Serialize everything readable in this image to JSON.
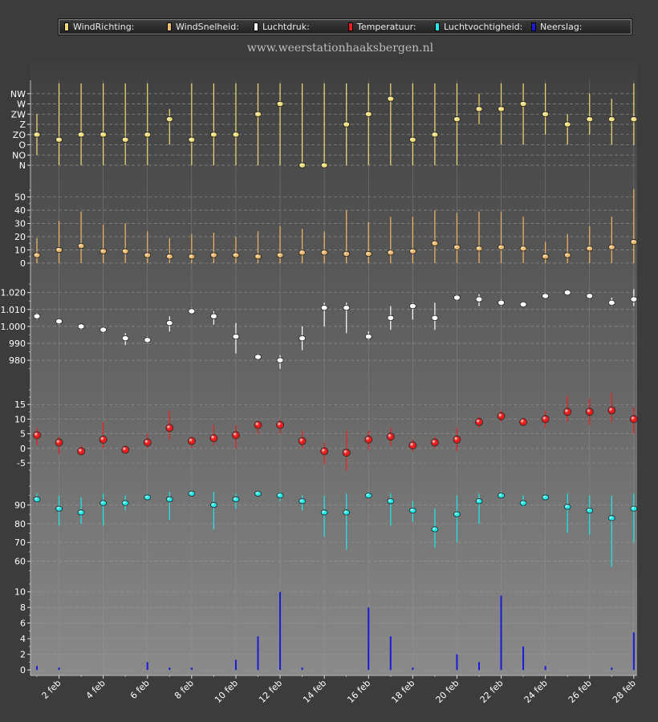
{
  "site_title": "www.weerstationhaaksbergen.nl",
  "colors": {
    "background": "#3c3c3c",
    "grid": "#9a9a9a",
    "wind_direction": "#f3dc78",
    "wind_speed": "#f0b86a",
    "pressure": "#ffffff",
    "temperature": "#ee1e1e",
    "humidity": "#1ee8e8",
    "precipitation": "#1a1ad8"
  },
  "legend": [
    {
      "label": "WindRichting:",
      "color": "#f3dc78"
    },
    {
      "label": "WindSnelheid:",
      "color": "#f0b86a"
    },
    {
      "label": "Luchtdruk:",
      "color": "#ffffff"
    },
    {
      "label": "Temperatuur:",
      "color": "#ee1e1e"
    },
    {
      "label": "Luchtvochtigheid:",
      "color": "#1ee8e8"
    },
    {
      "label": "Neerslag:",
      "color": "#1a1ad8"
    }
  ],
  "chart_data": [
    {
      "type": "scatter",
      "name": "WindRichting",
      "x": [
        "1 feb",
        "2 feb",
        "3 feb",
        "4 feb",
        "5 feb",
        "6 feb",
        "7 feb",
        "8 feb",
        "9 feb",
        "10 feb",
        "11 feb",
        "12 feb",
        "13 feb",
        "14 feb",
        "15 feb",
        "16 feb",
        "17 feb",
        "18 feb",
        "19 feb",
        "20 feb",
        "21 feb",
        "22 feb",
        "23 feb",
        "24 feb",
        "25 feb",
        "26 feb",
        "27 feb",
        "28 feb"
      ],
      "ytick_labels": [
        "N",
        "NO",
        "O",
        "ZO",
        "Z",
        "ZW",
        "W",
        "NW"
      ],
      "values": [
        3,
        2.5,
        3,
        3,
        2.5,
        3,
        4.5,
        2.5,
        3,
        3,
        5,
        6,
        0,
        0,
        4,
        5,
        6.5,
        2.5,
        3,
        4.5,
        5.5,
        5.5,
        6,
        5,
        4,
        4.5,
        4.5,
        4.5
      ],
      "low": [
        1,
        0,
        0,
        0,
        0,
        0,
        2,
        0,
        0,
        0,
        0,
        0,
        0,
        0,
        0,
        0,
        0,
        0,
        0,
        0,
        4,
        2,
        2,
        3,
        2,
        3,
        2,
        2
      ],
      "high": [
        5,
        8,
        8,
        8,
        8,
        8,
        5.5,
        8,
        8,
        8,
        8,
        8,
        8,
        8,
        8,
        8,
        8,
        8,
        8,
        8,
        7,
        8,
        8,
        8,
        5,
        7,
        6.5,
        8
      ],
      "ylim": [
        0,
        8
      ]
    },
    {
      "type": "scatter",
      "name": "WindSnelheid",
      "x": [
        "1 feb",
        "2 feb",
        "3 feb",
        "4 feb",
        "5 feb",
        "6 feb",
        "7 feb",
        "8 feb",
        "9 feb",
        "10 feb",
        "11 feb",
        "12 feb",
        "13 feb",
        "14 feb",
        "15 feb",
        "16 feb",
        "17 feb",
        "18 feb",
        "19 feb",
        "20 feb",
        "21 feb",
        "22 feb",
        "23 feb",
        "24 feb",
        "25 feb",
        "26 feb",
        "27 feb",
        "28 feb"
      ],
      "yticks": [
        0,
        10,
        20,
        30,
        40,
        50
      ],
      "values": [
        6,
        10,
        13,
        9,
        9,
        6,
        5,
        5,
        6,
        6,
        5,
        6,
        8,
        8,
        7,
        7,
        8,
        9,
        15,
        12,
        11,
        12,
        11,
        5,
        6,
        11,
        12,
        16
      ],
      "low": [
        0,
        0,
        0,
        0,
        0,
        0,
        0,
        0,
        0,
        0,
        0,
        0,
        0,
        0,
        0,
        0,
        0,
        0,
        0,
        0,
        0,
        0,
        0,
        0,
        0,
        0,
        0,
        0
      ],
      "high": [
        19,
        32,
        39,
        29,
        30,
        24,
        19,
        22,
        23,
        20,
        24,
        28,
        26,
        24,
        40,
        31,
        35,
        35,
        40,
        38,
        39,
        39,
        35,
        16,
        22,
        28,
        35,
        56
      ],
      "ylim": [
        0,
        57
      ]
    },
    {
      "type": "scatter",
      "name": "Luchtdruk",
      "x": [
        "1 feb",
        "2 feb",
        "3 feb",
        "4 feb",
        "5 feb",
        "6 feb",
        "7 feb",
        "8 feb",
        "9 feb",
        "10 feb",
        "11 feb",
        "12 feb",
        "13 feb",
        "14 feb",
        "15 feb",
        "16 feb",
        "17 feb",
        "18 feb",
        "19 feb",
        "20 feb",
        "21 feb",
        "22 feb",
        "23 feb",
        "24 feb",
        "25 feb",
        "26 feb",
        "27 feb",
        "28 feb"
      ],
      "yticks": [
        980,
        990,
        1000,
        1010,
        1020
      ],
      "ytick_labels": [
        "980",
        "990",
        "1.000",
        "1.010",
        "1.020"
      ],
      "values": [
        1006,
        1003,
        1000,
        998,
        993,
        992,
        1002,
        1009,
        1006,
        994,
        982,
        980,
        993,
        1011,
        1011,
        994,
        1005,
        1012,
        1005,
        1017,
        1016,
        1014,
        1013,
        1018,
        1020,
        1018,
        1014,
        1016
      ],
      "low": [
        1004,
        1001,
        998,
        996,
        989,
        990,
        997,
        1008,
        1001,
        984,
        981,
        975,
        986,
        1000,
        996,
        992,
        998,
        1004,
        998,
        1015,
        1012,
        1012,
        1012,
        1017,
        1019,
        1017,
        1012,
        1012
      ],
      "high": [
        1008,
        1004,
        1001,
        999,
        996,
        994,
        1006,
        1011,
        1009,
        1002,
        984,
        983,
        1000,
        1014,
        1014,
        997,
        1012,
        1014,
        1014,
        1019,
        1019,
        1016,
        1014,
        1020,
        1021,
        1019,
        1017,
        1022
      ],
      "ylim": [
        972,
        1026
      ]
    },
    {
      "type": "scatter",
      "name": "Temperatuur",
      "x": [
        "1 feb",
        "2 feb",
        "3 feb",
        "4 feb",
        "5 feb",
        "6 feb",
        "7 feb",
        "8 feb",
        "9 feb",
        "10 feb",
        "11 feb",
        "12 feb",
        "13 feb",
        "14 feb",
        "15 feb",
        "16 feb",
        "17 feb",
        "18 feb",
        "19 feb",
        "20 feb",
        "21 feb",
        "22 feb",
        "23 feb",
        "24 feb",
        "25 feb",
        "26 feb",
        "27 feb",
        "28 feb"
      ],
      "yticks": [
        -5,
        0,
        5,
        10,
        15
      ],
      "values": [
        4.5,
        2,
        -1,
        3,
        -0.5,
        2,
        7,
        2.5,
        3.5,
        4.5,
        8,
        8,
        2.5,
        -1,
        -1.5,
        3,
        4,
        1,
        2,
        3,
        9,
        11,
        9,
        10,
        12.5,
        12.5,
        13,
        10
      ],
      "low": [
        1,
        -2,
        -2.5,
        0,
        -1.5,
        0,
        3,
        0,
        1,
        0,
        5,
        5,
        0,
        -5.5,
        -7.5,
        -0.5,
        1,
        -1,
        0,
        -1,
        7,
        9,
        8,
        7,
        9,
        8,
        9,
        5
      ],
      "high": [
        7,
        4,
        1,
        9,
        1,
        5,
        13,
        4,
        8,
        8,
        9,
        10,
        6,
        2,
        6,
        6,
        7,
        3,
        4,
        7,
        11,
        13,
        10,
        13,
        18,
        17,
        19,
        14
      ],
      "ylim": [
        -8,
        20
      ]
    },
    {
      "type": "scatter",
      "name": "Luchtvochtigheid",
      "x": [
        "1 feb",
        "2 feb",
        "3 feb",
        "4 feb",
        "5 feb",
        "6 feb",
        "7 feb",
        "8 feb",
        "9 feb",
        "10 feb",
        "11 feb",
        "12 feb",
        "13 feb",
        "14 feb",
        "15 feb",
        "16 feb",
        "17 feb",
        "18 feb",
        "19 feb",
        "20 feb",
        "21 feb",
        "22 feb",
        "23 feb",
        "24 feb",
        "25 feb",
        "26 feb",
        "27 feb",
        "28 feb"
      ],
      "yticks": [
        60,
        70,
        80,
        90
      ],
      "values": [
        93,
        88,
        86,
        91,
        91,
        94,
        93,
        96,
        90,
        93,
        96,
        95,
        92,
        86,
        86,
        95,
        92,
        87,
        77,
        85,
        92,
        95,
        91,
        94,
        89,
        87,
        83,
        88
      ],
      "low": [
        91,
        79,
        80,
        79,
        87,
        93,
        82,
        95,
        77,
        88,
        95,
        92,
        87,
        73,
        66,
        94,
        79,
        81,
        67,
        70,
        80,
        94,
        89,
        93,
        75,
        74,
        57,
        70
      ],
      "high": [
        96,
        95,
        94,
        96,
        95,
        96,
        97,
        97,
        97,
        96,
        97,
        97,
        95,
        95,
        96,
        97,
        96,
        92,
        88,
        95,
        96,
        97,
        95,
        96,
        96,
        95,
        95,
        96
      ],
      "ylim": [
        53,
        100
      ]
    },
    {
      "type": "bar",
      "name": "Neerslag",
      "x": [
        "1 feb",
        "2 feb",
        "3 feb",
        "4 feb",
        "5 feb",
        "6 feb",
        "7 feb",
        "8 feb",
        "9 feb",
        "10 feb",
        "11 feb",
        "12 feb",
        "13 feb",
        "14 feb",
        "15 feb",
        "16 feb",
        "17 feb",
        "18 feb",
        "19 feb",
        "20 feb",
        "21 feb",
        "22 feb",
        "23 feb",
        "24 feb",
        "25 feb",
        "26 feb",
        "27 feb",
        "28 feb"
      ],
      "yticks": [
        0,
        2,
        4,
        6,
        8,
        10
      ],
      "values": [
        0.5,
        0.3,
        0,
        0,
        0,
        1.0,
        0.3,
        0.3,
        0,
        1.3,
        4.3,
        10,
        0.3,
        0,
        0,
        8,
        4.3,
        0.3,
        0,
        2,
        1,
        9.5,
        3,
        0.5,
        0,
        0,
        0.3,
        4.8
      ],
      "ylim": [
        -0.5,
        11
      ]
    }
  ],
  "x_axis_labels": [
    "2 feb",
    "4 feb",
    "6 feb",
    "8 feb",
    "10 feb",
    "12 feb",
    "14 feb",
    "16 feb",
    "18 feb",
    "20 feb",
    "22 feb",
    "24 feb",
    "26 feb",
    "28 feb"
  ]
}
